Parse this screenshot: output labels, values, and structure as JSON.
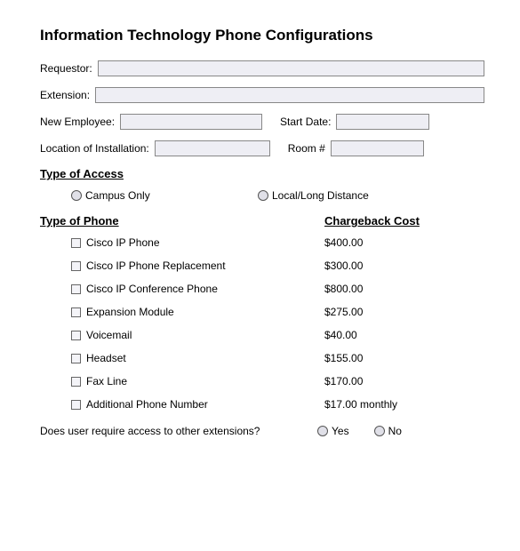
{
  "title": "Information Technology Phone Configurations",
  "fields": {
    "requestor_label": "Requestor:",
    "extension_label": "Extension:",
    "new_employee_label": "New Employee:",
    "start_date_label": "Start Date:",
    "location_label": "Location of Installation:",
    "room_label": "Room #"
  },
  "access": {
    "heading": "Type of Access",
    "option1": "Campus Only",
    "option2": "Local/Long Distance"
  },
  "phone": {
    "heading": "Type of Phone",
    "cost_heading": "Chargeback Cost",
    "items": [
      {
        "label": "Cisco IP Phone",
        "cost": "$400.00"
      },
      {
        "label": "Cisco IP Phone Replacement",
        "cost": "$300.00"
      },
      {
        "label": "Cisco IP Conference Phone",
        "cost": "$800.00"
      },
      {
        "label": "Expansion Module",
        "cost": "$275.00"
      },
      {
        "label": "Voicemail",
        "cost": "$40.00"
      },
      {
        "label": "Headset",
        "cost": "$155.00"
      },
      {
        "label": "Fax Line",
        "cost": "$170.00"
      },
      {
        "label": "Additional Phone Number",
        "cost": "$17.00 monthly"
      }
    ]
  },
  "question": {
    "text": "Does user require access to other extensions?",
    "yes": "Yes",
    "no": "No"
  }
}
